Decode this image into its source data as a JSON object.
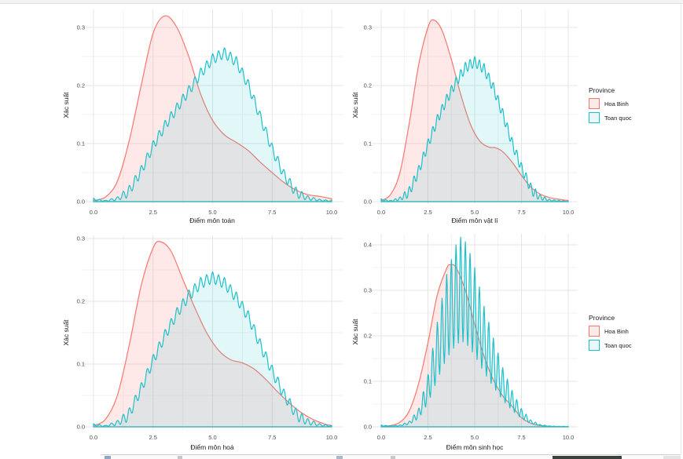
{
  "colors": {
    "hoa_binh_stroke": "#F8766D",
    "hoa_binh_fill": "rgba(248,118,109,0.16)",
    "toan_quoc_stroke": "#1EC0CA",
    "toan_quoc_fill": "rgba(30,192,202,0.13)",
    "grid_major": "#e5e5e5",
    "grid_minor": "#f2f2f2",
    "tick_text": "#4d4d4d",
    "axis_title_text": "#1a1a1a"
  },
  "legend": {
    "title": "Province",
    "items": [
      {
        "label": "Hoa Binh",
        "stroke": "#F8766D",
        "fill": "#fdeae8"
      },
      {
        "label": "Toan quoc",
        "stroke": "#1EC0CA",
        "fill": "#e6f8f9"
      }
    ],
    "position": "right"
  },
  "chart_data": [
    {
      "type": "area",
      "xlabel": "Điểm môn toán",
      "ylabel": "Xác suất",
      "xlim": [
        0,
        10
      ],
      "ylim": [
        0,
        0.33
      ],
      "xticks": [
        0,
        2.5,
        5,
        7.5,
        10
      ],
      "yticks": [
        0,
        0.1,
        0.2,
        0.3
      ],
      "grid": true,
      "series": [
        {
          "name": "Hoa Binh",
          "style": "smooth",
          "points": [
            [
              0,
              0.002
            ],
            [
              0.5,
              0.008
            ],
            [
              1,
              0.035
            ],
            [
              1.5,
              0.105
            ],
            [
              2,
              0.2
            ],
            [
              2.5,
              0.29
            ],
            [
              3,
              0.32
            ],
            [
              3.5,
              0.3
            ],
            [
              4,
              0.25
            ],
            [
              4.5,
              0.185
            ],
            [
              5,
              0.14
            ],
            [
              5.5,
              0.115
            ],
            [
              6,
              0.102
            ],
            [
              6.5,
              0.088
            ],
            [
              7,
              0.068
            ],
            [
              7.5,
              0.05
            ],
            [
              8,
              0.033
            ],
            [
              8.5,
              0.02
            ],
            [
              9,
              0.012
            ],
            [
              9.5,
              0.009
            ],
            [
              10,
              0.005
            ]
          ]
        },
        {
          "name": "Toan quoc",
          "style": "comb",
          "wiggle": {
            "period": 0.25,
            "depth": 0.018,
            "mode": "abs"
          },
          "points": [
            [
              0,
              0.006
            ],
            [
              0.5,
              0.002
            ],
            [
              1,
              0.008
            ],
            [
              1.5,
              0.028
            ],
            [
              2,
              0.062
            ],
            [
              2.5,
              0.105
            ],
            [
              3,
              0.14
            ],
            [
              3.5,
              0.17
            ],
            [
              4,
              0.2
            ],
            [
              4.5,
              0.23
            ],
            [
              5,
              0.255
            ],
            [
              5.5,
              0.265
            ],
            [
              6,
              0.25
            ],
            [
              6.5,
              0.21
            ],
            [
              7,
              0.155
            ],
            [
              7.5,
              0.1
            ],
            [
              8,
              0.055
            ],
            [
              8.5,
              0.025
            ],
            [
              9,
              0.01
            ],
            [
              9.5,
              0.004
            ],
            [
              10,
              0.002
            ]
          ]
        }
      ]
    },
    {
      "type": "area",
      "xlabel": "Điểm môn vật lí",
      "ylabel": "Xác suất",
      "xlim": [
        0,
        10
      ],
      "ylim": [
        0,
        0.33
      ],
      "xticks": [
        0,
        2.5,
        5,
        7.5,
        10
      ],
      "yticks": [
        0,
        0.1,
        0.2,
        0.3
      ],
      "grid": true,
      "series": [
        {
          "name": "Hoa Binh",
          "style": "smooth",
          "points": [
            [
              0,
              0.002
            ],
            [
              0.5,
              0.012
            ],
            [
              1,
              0.05
            ],
            [
              1.5,
              0.135
            ],
            [
              2,
              0.235
            ],
            [
              2.5,
              0.3
            ],
            [
              2.8,
              0.313
            ],
            [
              3.25,
              0.295
            ],
            [
              3.75,
              0.245
            ],
            [
              4.25,
              0.185
            ],
            [
              4.75,
              0.135
            ],
            [
              5.25,
              0.105
            ],
            [
              5.75,
              0.094
            ],
            [
              6.1,
              0.093
            ],
            [
              6.5,
              0.086
            ],
            [
              7,
              0.068
            ],
            [
              7.5,
              0.045
            ],
            [
              8,
              0.025
            ],
            [
              8.5,
              0.013
            ],
            [
              9,
              0.007
            ],
            [
              9.5,
              0.004
            ],
            [
              10,
              0.002
            ]
          ]
        },
        {
          "name": "Toan quoc",
          "style": "comb",
          "wiggle": {
            "period": 0.25,
            "depth": 0.018,
            "mode": "abs"
          },
          "points": [
            [
              0,
              0.005
            ],
            [
              0.5,
              0.002
            ],
            [
              1,
              0.008
            ],
            [
              1.5,
              0.026
            ],
            [
              2,
              0.062
            ],
            [
              2.5,
              0.108
            ],
            [
              3,
              0.15
            ],
            [
              3.5,
              0.185
            ],
            [
              4,
              0.215
            ],
            [
              4.5,
              0.24
            ],
            [
              5,
              0.25
            ],
            [
              5.5,
              0.238
            ],
            [
              6,
              0.205
            ],
            [
              6.5,
              0.16
            ],
            [
              7,
              0.11
            ],
            [
              7.5,
              0.067
            ],
            [
              8,
              0.032
            ],
            [
              8.5,
              0.012
            ],
            [
              9,
              0.004
            ],
            [
              9.5,
              0.002
            ],
            [
              10,
              0.001
            ]
          ]
        }
      ]
    },
    {
      "type": "area",
      "xlabel": "Điểm môn hoá",
      "ylabel": "Xác suất",
      "xlim": [
        0,
        10
      ],
      "ylim": [
        0,
        0.31
      ],
      "xticks": [
        0,
        2.5,
        5,
        7.5,
        10
      ],
      "yticks": [
        0,
        0.1,
        0.2,
        0.3
      ],
      "grid": true,
      "series": [
        {
          "name": "Hoa Binh",
          "style": "smooth",
          "points": [
            [
              0,
              0.002
            ],
            [
              0.5,
              0.012
            ],
            [
              1,
              0.05
            ],
            [
              1.5,
              0.13
            ],
            [
              2,
              0.225
            ],
            [
              2.5,
              0.285
            ],
            [
              2.8,
              0.295
            ],
            [
              3.25,
              0.28
            ],
            [
              3.75,
              0.235
            ],
            [
              4.25,
              0.19
            ],
            [
              4.75,
              0.15
            ],
            [
              5.25,
              0.122
            ],
            [
              5.75,
              0.107
            ],
            [
              6.25,
              0.102
            ],
            [
              6.75,
              0.092
            ],
            [
              7.25,
              0.075
            ],
            [
              7.75,
              0.055
            ],
            [
              8.25,
              0.037
            ],
            [
              8.75,
              0.022
            ],
            [
              9.25,
              0.011
            ],
            [
              9.75,
              0.004
            ],
            [
              10,
              0.002
            ]
          ]
        },
        {
          "name": "Toan quoc",
          "style": "comb",
          "wiggle": {
            "period": 0.25,
            "depth": 0.018,
            "mode": "abs"
          },
          "points": [
            [
              0,
              0.005
            ],
            [
              0.5,
              0.002
            ],
            [
              1,
              0.01
            ],
            [
              1.5,
              0.03
            ],
            [
              2,
              0.07
            ],
            [
              2.5,
              0.115
            ],
            [
              3,
              0.155
            ],
            [
              3.5,
              0.19
            ],
            [
              4,
              0.218
            ],
            [
              4.5,
              0.238
            ],
            [
              5,
              0.247
            ],
            [
              5.5,
              0.238
            ],
            [
              6,
              0.215
            ],
            [
              6.5,
              0.185
            ],
            [
              7,
              0.14
            ],
            [
              7.5,
              0.098
            ],
            [
              8,
              0.06
            ],
            [
              8.5,
              0.03
            ],
            [
              9,
              0.013
            ],
            [
              9.5,
              0.005
            ],
            [
              10,
              0.002
            ]
          ]
        }
      ]
    },
    {
      "type": "area",
      "xlabel": "Điểm môn sinh học",
      "ylabel": "Xác suất",
      "xlim": [
        0,
        10
      ],
      "ylim": [
        0,
        0.43
      ],
      "xticks": [
        0,
        2.5,
        5,
        7.5,
        10
      ],
      "yticks": [
        0,
        0.1,
        0.2,
        0.3,
        0.4
      ],
      "grid": true,
      "series": [
        {
          "name": "Hoa Binh",
          "style": "smooth",
          "points": [
            [
              0,
              0.001
            ],
            [
              0.5,
              0.003
            ],
            [
              1,
              0.01
            ],
            [
              1.5,
              0.035
            ],
            [
              2,
              0.095
            ],
            [
              2.5,
              0.185
            ],
            [
              3,
              0.29
            ],
            [
              3.5,
              0.348
            ],
            [
              3.7,
              0.356
            ],
            [
              4,
              0.35
            ],
            [
              4.5,
              0.3
            ],
            [
              5,
              0.225
            ],
            [
              5.5,
              0.155
            ],
            [
              6,
              0.103
            ],
            [
              6.5,
              0.068
            ],
            [
              6.9,
              0.05
            ],
            [
              7.2,
              0.035
            ],
            [
              7.5,
              0.02
            ],
            [
              8,
              0.008
            ],
            [
              8.5,
              0.003
            ],
            [
              9,
              0.001
            ],
            [
              10,
              0
            ]
          ]
        },
        {
          "name": "Toan quoc",
          "style": "comb",
          "wiggle": {
            "period": 0.25,
            "depth": 0.55,
            "mode": "rel"
          },
          "points": [
            [
              0,
              0.004
            ],
            [
              0.5,
              0.002
            ],
            [
              1,
              0.004
            ],
            [
              1.5,
              0.012
            ],
            [
              2,
              0.04
            ],
            [
              2.5,
              0.115
            ],
            [
              3,
              0.23
            ],
            [
              3.5,
              0.335
            ],
            [
              4,
              0.4
            ],
            [
              4.3,
              0.42
            ],
            [
              4.6,
              0.4
            ],
            [
              5,
              0.35
            ],
            [
              5.5,
              0.265
            ],
            [
              6,
              0.195
            ],
            [
              6.5,
              0.13
            ],
            [
              7,
              0.08
            ],
            [
              7.5,
              0.04
            ],
            [
              8,
              0.015
            ],
            [
              8.5,
              0.005
            ],
            [
              9,
              0.002
            ],
            [
              9.5,
              0.001
            ],
            [
              10,
              0.001
            ]
          ]
        }
      ]
    }
  ]
}
